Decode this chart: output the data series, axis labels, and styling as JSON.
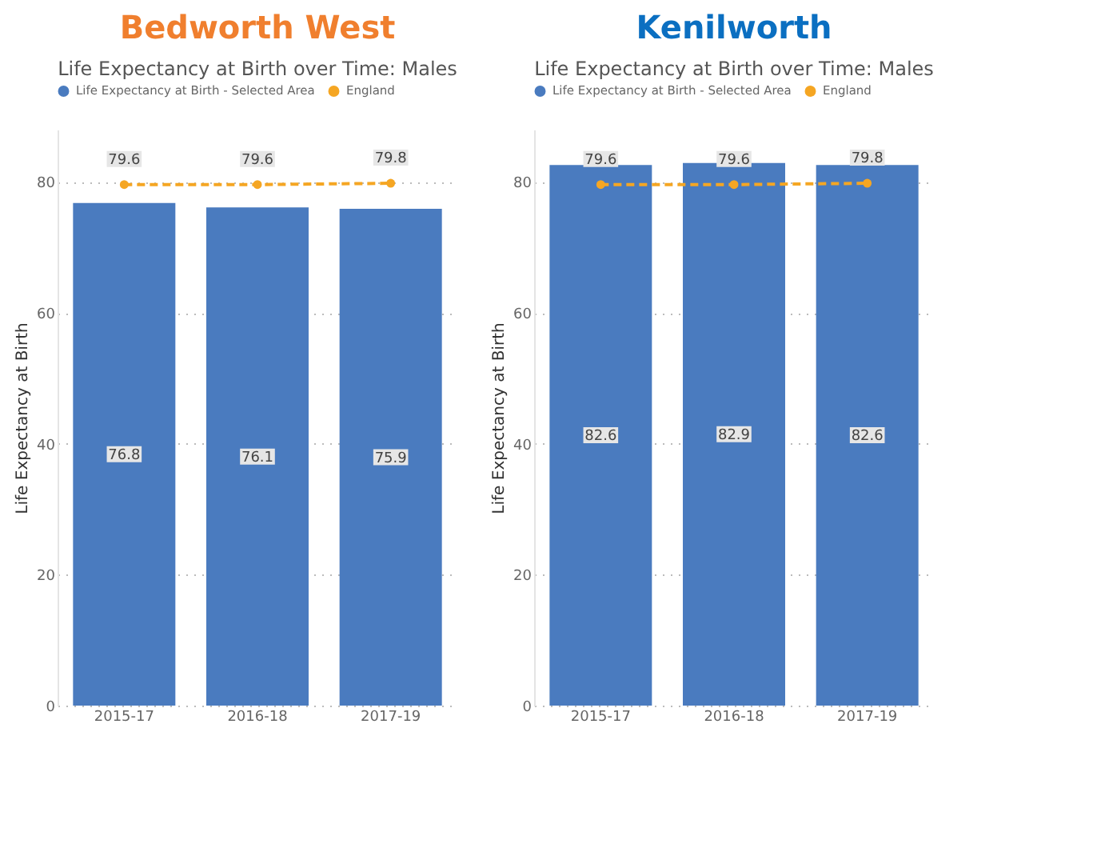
{
  "chart_data": [
    {
      "type": "bar",
      "title": "Bedworth West",
      "subtitle": "Life Expectancy at Birth over Time: Males",
      "ylabel": "Life Expectancy at Birth",
      "categories": [
        "2015-17",
        "2016-18",
        "2017-19"
      ],
      "series": [
        {
          "name": "Life Expectancy at Birth - Selected Area",
          "color": "#4a7bbf",
          "values": [
            76.8,
            76.1,
            75.9
          ]
        },
        {
          "name": "England",
          "type": "line",
          "color": "#f5a623",
          "values": [
            79.6,
            79.6,
            79.8
          ],
          "marker": "circle",
          "line_style": "dashed"
        }
      ],
      "ylim": [
        0,
        88
      ],
      "yticks": [
        0,
        20,
        40,
        60,
        80
      ],
      "grid": "y",
      "legend": "top left",
      "data_labels": true
    },
    {
      "type": "bar",
      "title": "Kenilworth",
      "subtitle": "Life Expectancy at Birth over Time: Males",
      "ylabel": "Life Expectancy at Birth",
      "categories": [
        "2015-17",
        "2016-18",
        "2017-19"
      ],
      "series": [
        {
          "name": "Life Expectancy at Birth - Selected Area",
          "color": "#4a7bbf",
          "values": [
            82.6,
            82.9,
            82.6
          ]
        },
        {
          "name": "England",
          "type": "line",
          "color": "#f5a623",
          "values": [
            79.6,
            79.6,
            79.8
          ],
          "marker": "circle",
          "line_style": "dashed"
        }
      ],
      "ylim": [
        0,
        88
      ],
      "yticks": [
        0,
        20,
        40,
        60,
        80
      ],
      "grid": "y",
      "legend": "top left",
      "data_labels": true
    }
  ]
}
